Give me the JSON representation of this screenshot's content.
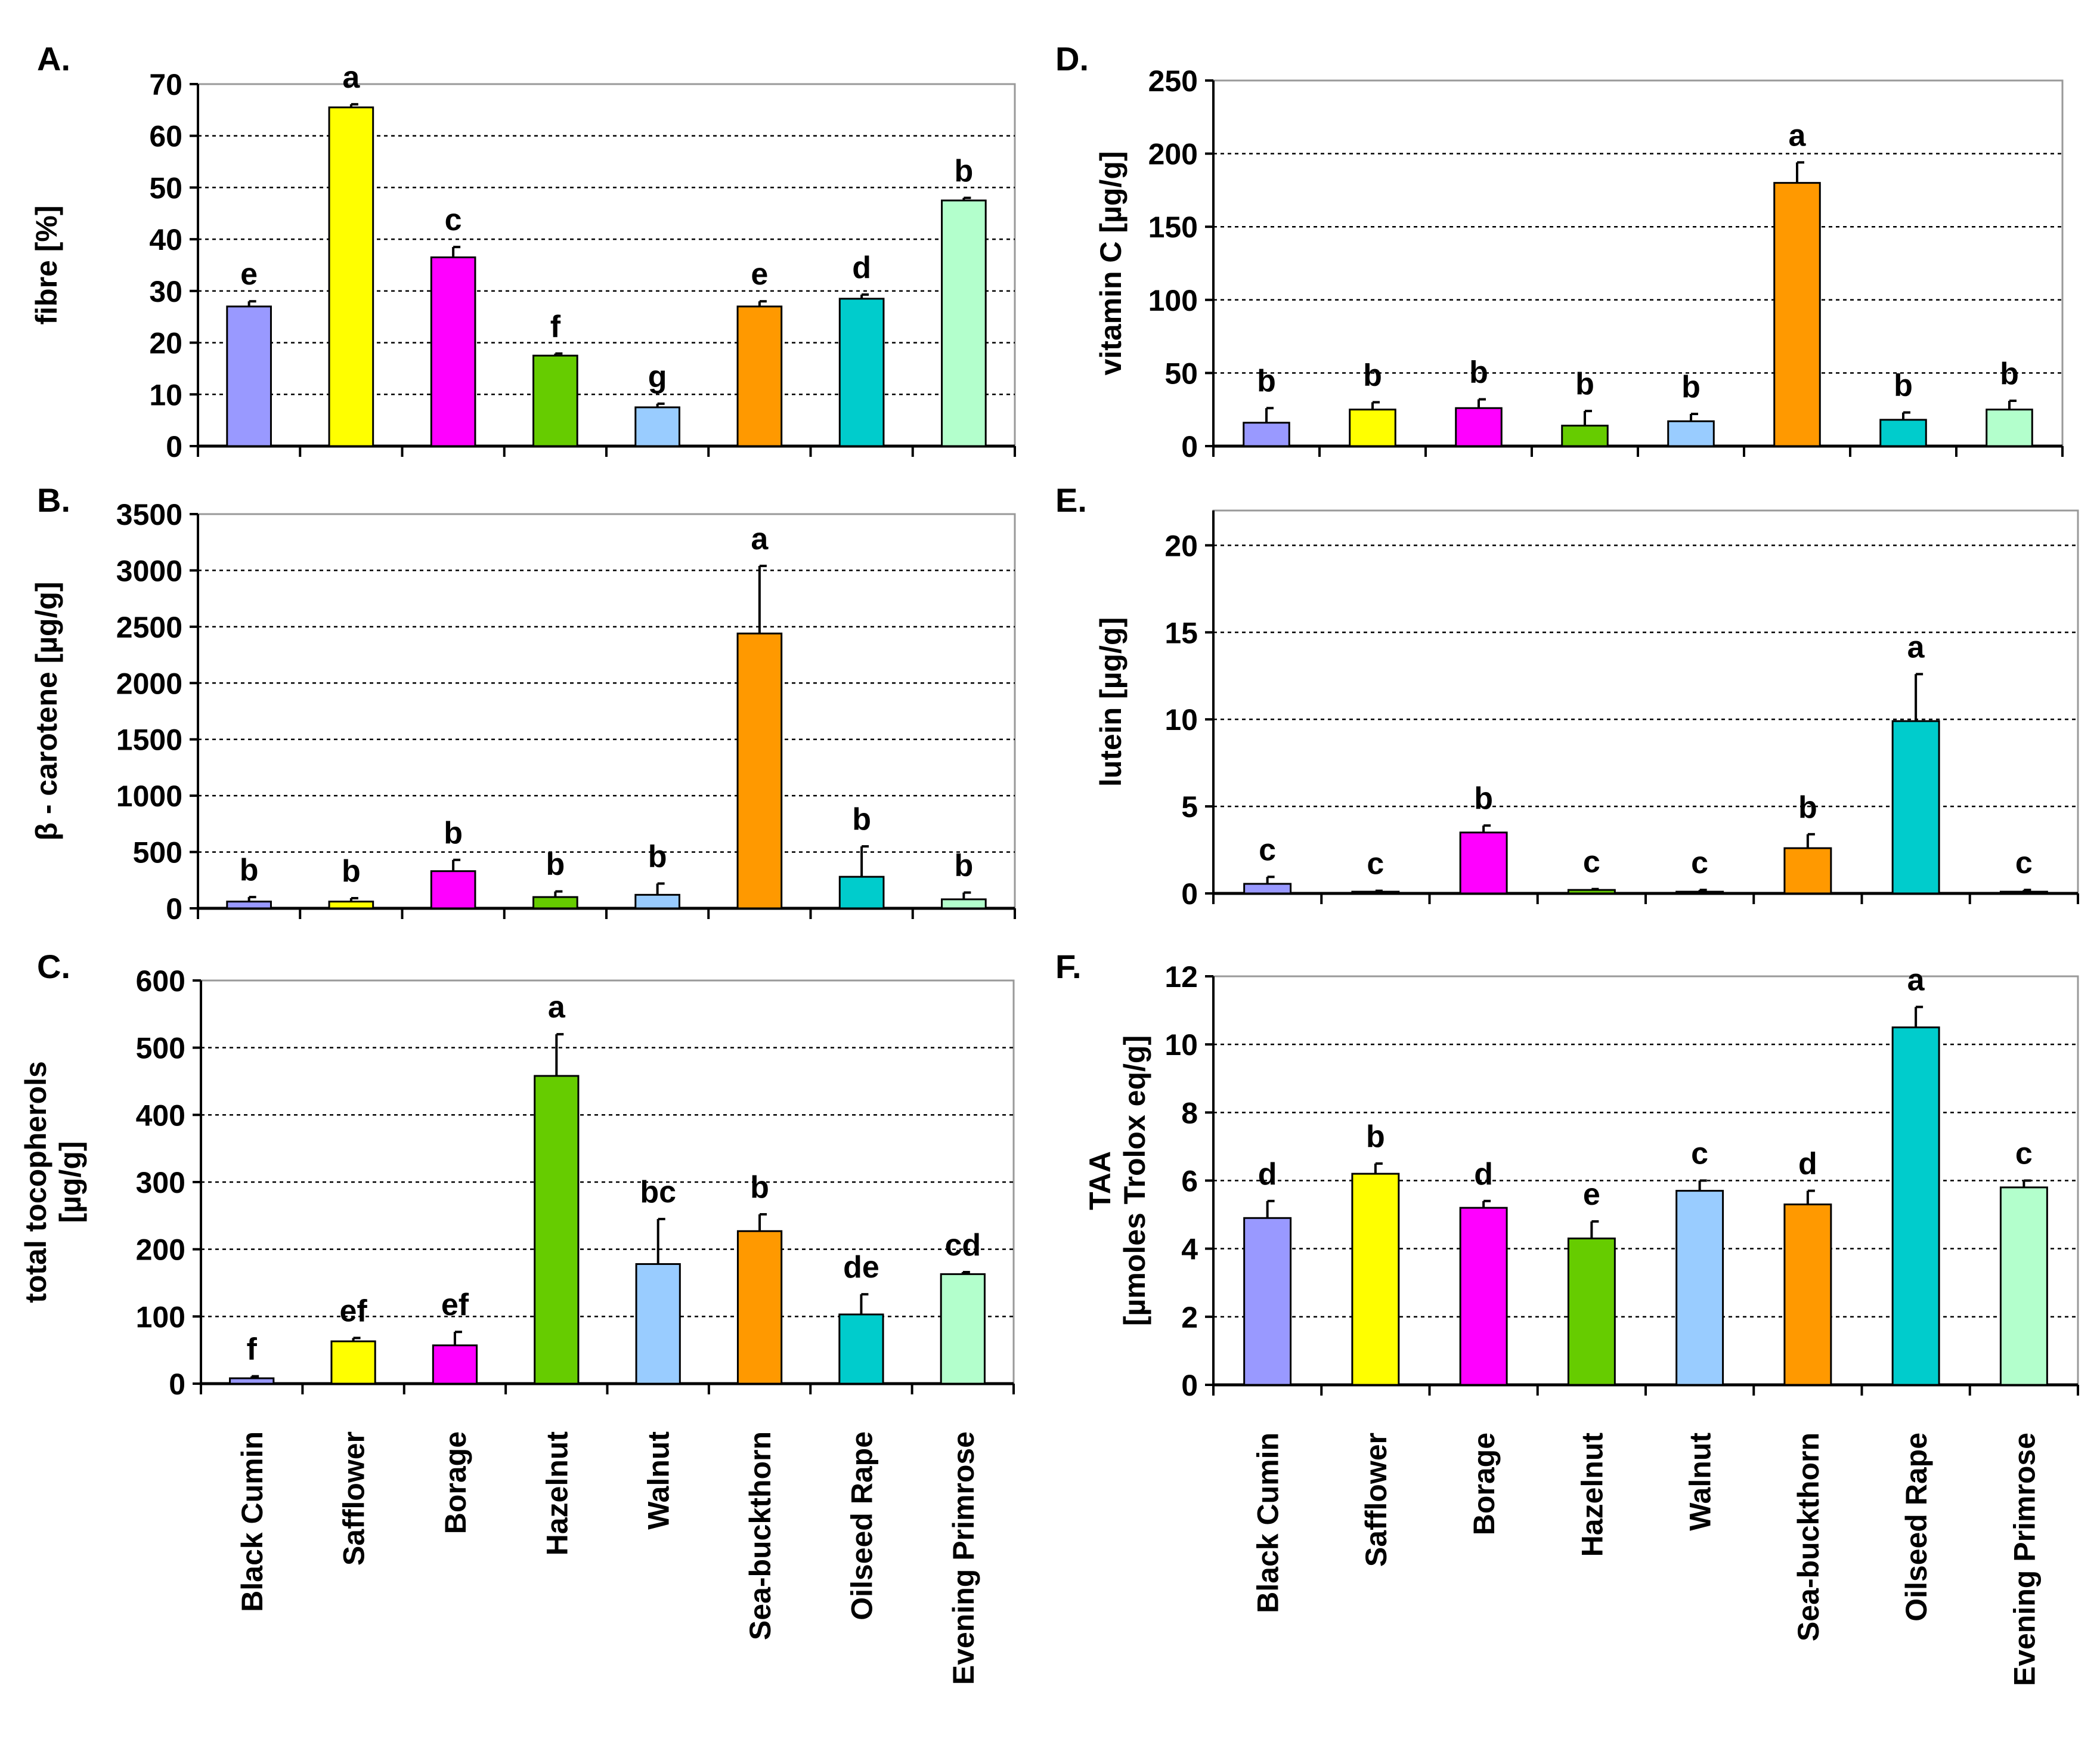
{
  "categories": [
    "Black Cumin",
    "Safflower",
    "Borage",
    "Hazelnut",
    "Walnut",
    "Sea-buckthorn",
    "Oilseed Rape",
    "Evening Primrose"
  ],
  "colors": [
    "#9999ff",
    "#ffff00",
    "#ff00ff",
    "#66cc00",
    "#99ccff",
    "#ff9900",
    "#00cccc",
    "#b3ffcc"
  ],
  "chart_data": [
    {
      "panel": "A.",
      "type": "bar",
      "ylabel": [
        "fibre [%]"
      ],
      "ylim": [
        0,
        70
      ],
      "yticks": [
        0,
        10,
        20,
        30,
        40,
        50,
        60,
        70
      ],
      "values": [
        27,
        65.5,
        36.5,
        17.5,
        7.5,
        27,
        28.5,
        47.5
      ],
      "errors": [
        1,
        0.6,
        2,
        0.4,
        0.7,
        1,
        0.8,
        0.5
      ],
      "letters": [
        "e",
        "a",
        "c",
        "f",
        "g",
        "e",
        "d",
        "b"
      ]
    },
    {
      "panel": "B.",
      "type": "bar",
      "ylabel": [
        "β - carotene [µg/g]"
      ],
      "ylim": [
        0,
        3500
      ],
      "yticks": [
        0,
        500,
        1000,
        1500,
        2000,
        2500,
        3000,
        3500
      ],
      "values": [
        60,
        60,
        330,
        100,
        120,
        2440,
        280,
        80
      ],
      "errors": [
        40,
        30,
        100,
        50,
        100,
        600,
        270,
        60
      ],
      "letters": [
        "b",
        "b",
        "b",
        "b",
        "b",
        "a",
        "b",
        "b"
      ]
    },
    {
      "panel": "C.",
      "type": "bar",
      "ylabel": [
        "total tocopherols",
        "[µg/g]"
      ],
      "ylim": [
        0,
        600
      ],
      "yticks": [
        0,
        100,
        200,
        300,
        400,
        500,
        600
      ],
      "values": [
        8,
        63,
        57,
        458,
        178,
        227,
        103,
        163
      ],
      "errors": [
        3,
        5,
        20,
        62,
        67,
        25,
        30,
        3
      ],
      "letters": [
        "f",
        "ef",
        "ef",
        "a",
        "bc",
        "b",
        "de",
        "cd"
      ]
    },
    {
      "panel": "D.",
      "type": "bar",
      "ylabel": [
        "vitamin C [µg/g]"
      ],
      "ylim": [
        0,
        250
      ],
      "yticks": [
        0,
        50,
        100,
        150,
        200,
        250
      ],
      "values": [
        16,
        25,
        26,
        14,
        17,
        180,
        18,
        25
      ],
      "errors": [
        10,
        5,
        6,
        10,
        5,
        14,
        5,
        6
      ],
      "letters": [
        "b",
        "b",
        "b",
        "b",
        "b",
        "a",
        "b",
        "b"
      ]
    },
    {
      "panel": "E.",
      "type": "bar",
      "ylabel": [
        "lutein [µg/g]"
      ],
      "ylim": [
        0,
        22
      ],
      "yticks": [
        0,
        5,
        10,
        15,
        20
      ],
      "values": [
        0.55,
        0.1,
        3.5,
        0.2,
        0.1,
        2.6,
        9.9,
        0.1
      ],
      "errors": [
        0.4,
        0.05,
        0.4,
        0.05,
        0.1,
        0.8,
        2.7,
        0.1
      ],
      "letters": [
        "c",
        "c",
        "b",
        "c",
        "c",
        "b",
        "a",
        "c"
      ]
    },
    {
      "panel": "F.",
      "type": "bar",
      "ylabel": [
        "TAA",
        "[µmoles Trolox eq/g]"
      ],
      "ylim": [
        0,
        12
      ],
      "yticks": [
        0,
        2,
        4,
        6,
        8,
        10,
        12
      ],
      "values": [
        4.9,
        6.2,
        5.2,
        4.3,
        5.7,
        5.3,
        10.5,
        5.8
      ],
      "errors": [
        0.5,
        0.3,
        0.2,
        0.5,
        0.3,
        0.4,
        0.6,
        0.2
      ],
      "letters": [
        "d",
        "b",
        "d",
        "e",
        "c",
        "d",
        "a",
        "c"
      ]
    }
  ]
}
